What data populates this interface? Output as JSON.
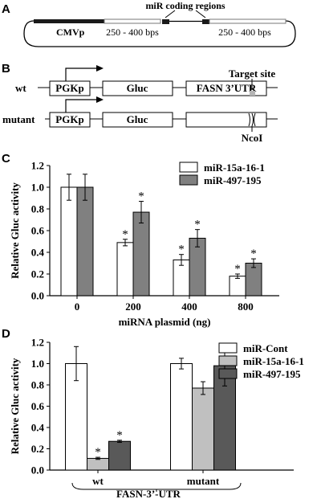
{
  "panel_a": {
    "letter": "A",
    "promoter_label": "CMVp",
    "mir_label": "miR coding regions",
    "flank_left": "250 - 400 bps",
    "flank_right": "250 - 400 bps"
  },
  "panel_b": {
    "letter": "B",
    "wt_label": "wt",
    "mutant_label": "mutant",
    "promoter": "PGKp",
    "reporter": "Gluc",
    "utr": "FASN 3’UTR",
    "target_site": "Target site",
    "ncoi": "NcoI"
  },
  "chart_data": [
    {
      "panel": "C",
      "type": "bar",
      "ylabel": "Relative Gluc activity",
      "xlabel": "miRNA plasmid (ng)",
      "categories": [
        "0",
        "200",
        "400",
        "800"
      ],
      "ylim": [
        0,
        1.2
      ],
      "yticks": [
        "0.0",
        "0.2",
        "0.4",
        "0.6",
        "0.8",
        "1.0",
        "1.2"
      ],
      "series": [
        {
          "name": "miR-15a-16-1",
          "color": "#ffffff",
          "values": [
            1.0,
            0.49,
            0.33,
            0.18
          ],
          "errors": [
            0.12,
            0.03,
            0.05,
            0.02
          ],
          "sig": [
            "",
            "*",
            "*",
            "*"
          ]
        },
        {
          "name": "miR-497-195",
          "color": "#808080",
          "values": [
            1.0,
            0.77,
            0.53,
            0.3
          ],
          "errors": [
            0.12,
            0.1,
            0.08,
            0.04
          ],
          "sig": [
            "",
            "*",
            "*",
            "*"
          ]
        }
      ],
      "legend_position": "top-right"
    },
    {
      "panel": "D",
      "type": "bar",
      "ylabel": "Relative Gluc activity",
      "xlabel": "FASN-3’-UTR",
      "categories": [
        "wt",
        "mutant"
      ],
      "ylim": [
        0,
        1.2
      ],
      "yticks": [
        "0.0",
        "0.2",
        "0.4",
        "0.6",
        "0.8",
        "1.0",
        "1.2"
      ],
      "series": [
        {
          "name": "miR-Cont",
          "color": "#ffffff",
          "values": [
            1.0,
            1.0
          ],
          "errors": [
            0.16,
            0.05
          ],
          "sig": [
            "",
            ""
          ]
        },
        {
          "name": "miR-15a-16-1",
          "color": "#c0c0c0",
          "values": [
            0.11,
            0.77
          ],
          "errors": [
            0.01,
            0.06
          ],
          "sig": [
            "*",
            ""
          ]
        },
        {
          "name": "miR-497-195",
          "color": "#595959",
          "values": [
            0.27,
            0.98
          ],
          "errors": [
            0.01,
            0.19
          ],
          "sig": [
            "*",
            ""
          ]
        }
      ],
      "legend_position": "top-right"
    }
  ]
}
